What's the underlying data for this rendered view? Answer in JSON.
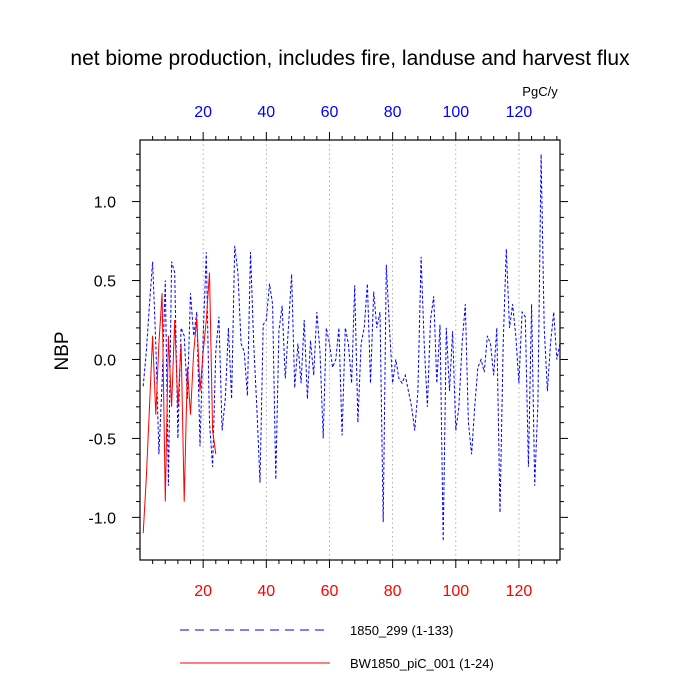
{
  "chart_data": {
    "type": "line",
    "title": "net biome production, includes fire, landuse and harvest flux",
    "units_label": "PgC/y",
    "ylabel": "NBP",
    "xlabel": "",
    "xlim": [
      0,
      133
    ],
    "ylim": [
      -1.27,
      1.39
    ],
    "x_ticks": [
      20,
      40,
      60,
      80,
      100,
      120
    ],
    "y_ticks": [
      1.0,
      0.5,
      0.0,
      -0.5,
      -1.0
    ],
    "y_tick_labels": [
      "1.0",
      "0.5",
      "0.0",
      "-0.5",
      "-1.0"
    ],
    "grid": "vertical dotted at major x ticks",
    "colors": {
      "series_1850": "#0000ff",
      "series_bw": "#ff0000",
      "top_axis": "#0000ff",
      "bottom_axis": "#ff0000"
    },
    "series": [
      {
        "name": "1850_299 (1-133)",
        "color": "#0000ff",
        "style": "dashed",
        "x": [
          1,
          2,
          3,
          4,
          5,
          6,
          7,
          8,
          9,
          10,
          11,
          12,
          13,
          14,
          15,
          16,
          17,
          18,
          19,
          20,
          21,
          22,
          23,
          24,
          25,
          26,
          27,
          28,
          29,
          30,
          31,
          32,
          33,
          34,
          35,
          36,
          37,
          38,
          39,
          40,
          41,
          42,
          43,
          44,
          45,
          46,
          47,
          48,
          49,
          50,
          51,
          52,
          53,
          54,
          55,
          56,
          57,
          58,
          59,
          60,
          61,
          62,
          63,
          64,
          65,
          66,
          67,
          68,
          69,
          70,
          71,
          72,
          73,
          74,
          75,
          76,
          77,
          78,
          79,
          80,
          81,
          82,
          83,
          84,
          85,
          86,
          87,
          88,
          89,
          90,
          91,
          92,
          93,
          94,
          95,
          96,
          97,
          98,
          99,
          100,
          101,
          102,
          103,
          104,
          105,
          106,
          107,
          108,
          109,
          110,
          111,
          112,
          113,
          114,
          115,
          116,
          117,
          118,
          119,
          120,
          121,
          122,
          123,
          124,
          125,
          126,
          127,
          128,
          129,
          130,
          131,
          132,
          133
        ],
        "values": [
          -0.17,
          0.05,
          0.35,
          0.62,
          0.1,
          -0.6,
          -0.15,
          0.5,
          -0.8,
          0.62,
          0.55,
          -0.5,
          0.2,
          0.15,
          -0.25,
          0.42,
          0.15,
          0.3,
          -0.55,
          0.15,
          0.68,
          -0.4,
          -0.68,
          0.05,
          0.27,
          -0.45,
          -0.25,
          0.2,
          -0.25,
          0.72,
          0.55,
          0.1,
          0.05,
          -0.23,
          0.68,
          0.1,
          -0.3,
          -0.78,
          0.22,
          0.25,
          0.48,
          0.35,
          -0.76,
          0.18,
          0.34,
          -0.12,
          0.2,
          0.54,
          -0.18,
          0.1,
          -0.15,
          0.25,
          -0.25,
          0.12,
          -0.1,
          0.3,
          0.05,
          -0.5,
          0.2,
          0.1,
          -0.05,
          0.0,
          0.2,
          -0.48,
          0.2,
          0.1,
          -0.15,
          0.47,
          -0.4,
          0.1,
          0.2,
          0.48,
          -0.15,
          0.43,
          0.2,
          0.3,
          -1.03,
          0.6,
          0.2,
          -0.15,
          0.0,
          -0.12,
          -0.15,
          -0.1,
          -0.2,
          -0.3,
          -0.45,
          -0.2,
          0.65,
          0.1,
          -0.3,
          0.25,
          0.4,
          -0.15,
          0.22,
          -1.15,
          0.2,
          -0.2,
          0.18,
          -0.45,
          -0.3,
          0.1,
          0.35,
          -0.4,
          -0.6,
          -0.3,
          -0.05,
          0.0,
          -0.08,
          0.15,
          0.1,
          -0.1,
          0.2,
          -0.97,
          0.1,
          0.7,
          0.2,
          0.35,
          0.15,
          -0.15,
          0.3,
          0.27,
          -0.68,
          0.35,
          -0.8,
          -0.28,
          1.3,
          0.2,
          -0.2,
          0.1,
          0.3,
          0.0,
          0.1
        ]
      },
      {
        "name": "BW1850_piC_001 (1-24)",
        "color": "#ff0000",
        "style": "solid",
        "x": [
          1,
          2,
          3,
          4,
          5,
          6,
          7,
          8,
          9,
          10,
          11,
          12,
          13,
          14,
          15,
          16,
          17,
          18,
          19,
          20,
          21,
          22,
          23,
          24
        ],
        "values": [
          -1.1,
          -0.75,
          -0.3,
          0.15,
          -0.35,
          0.1,
          0.42,
          -0.9,
          0.15,
          -0.3,
          0.25,
          -0.3,
          0.1,
          -0.9,
          -0.05,
          -0.35,
          0.05,
          0.26,
          -0.2,
          0.05,
          0.25,
          0.55,
          -0.45,
          -0.6
        ]
      }
    ],
    "legend": {
      "placement": "bottom",
      "entries": [
        "1850_299 (1-133)",
        "BW1850_piC_001 (1-24)"
      ]
    }
  }
}
